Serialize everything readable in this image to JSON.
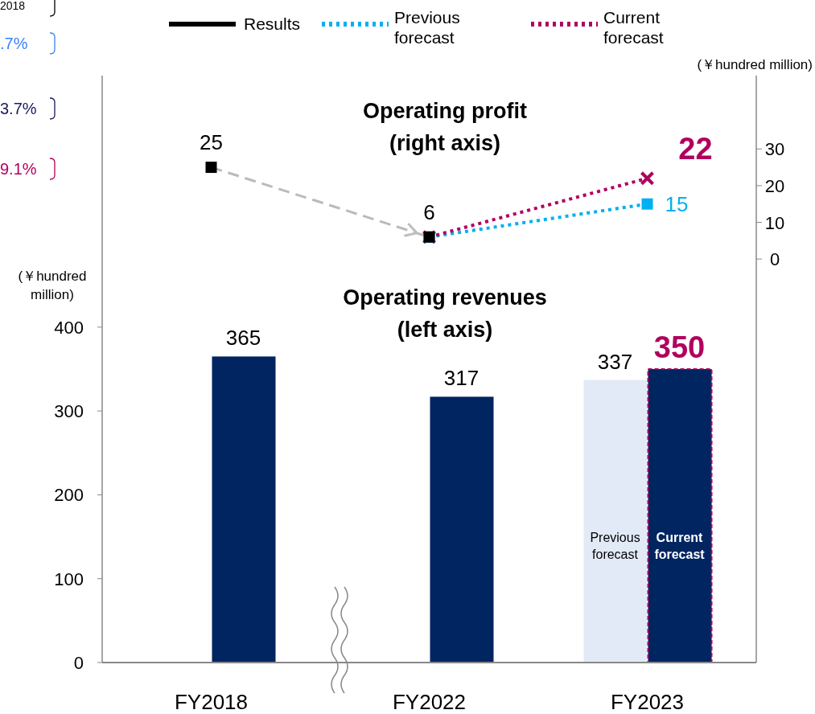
{
  "chart_data": {
    "type": "bar",
    "categories": [
      "FY2018",
      "FY2022",
      "FY2023"
    ],
    "ylabel": "(￥hundred million)",
    "y2label": "(￥hundred million)",
    "ylim": [
      0,
      700
    ],
    "yticks": [
      0,
      100,
      200,
      300,
      400
    ],
    "y2lim": [
      -110,
      50
    ],
    "y2ticks": [
      0,
      10,
      20,
      30
    ],
    "legend": "top",
    "grid": false,
    "annotations": [
      "Operating profit (right axis)",
      "Operating revenues (left axis)",
      "2018",
      ".7%",
      "3.7%",
      "9.1%"
    ],
    "series": [
      {
        "color": "#002561",
        "values": [
          365,
          317,
          null
        ],
        "value_labels": [
          "365",
          "317",
          null
        ]
      },
      {
        "name": "Previous forecast",
        "color": "#e3eaf7",
        "values": [
          null,
          null,
          337
        ],
        "value_labels": [
          null,
          null,
          "337"
        ]
      },
      {
        "name": "Current forecast",
        "color": "#002561",
        "values": [
          null,
          null,
          350
        ],
        "value_labels": [
          null,
          null,
          "350"
        ]
      },
      {
        "type": "line",
        "axis": "y2",
        "name": "Results",
        "color": "#000000",
        "marker": "square",
        "line_style": "dashed",
        "values": [
          25,
          6,
          null
        ],
        "value_labels": [
          "25",
          "6",
          null
        ]
      },
      {
        "type": "line",
        "axis": "y2",
        "name": "Previous forecast",
        "color": "#00b0f0",
        "marker": "square",
        "line_style": "dotted",
        "values": [
          null,
          6,
          15
        ],
        "value_labels": [
          null,
          null,
          "15"
        ]
      },
      {
        "type": "line",
        "axis": "y2",
        "name": "Current forecast",
        "color": "#b0005f",
        "marker": "cross",
        "line_style": "dotted",
        "values": [
          null,
          6,
          22
        ],
        "value_labels": [
          null,
          null,
          "22"
        ]
      }
    ]
  }
}
